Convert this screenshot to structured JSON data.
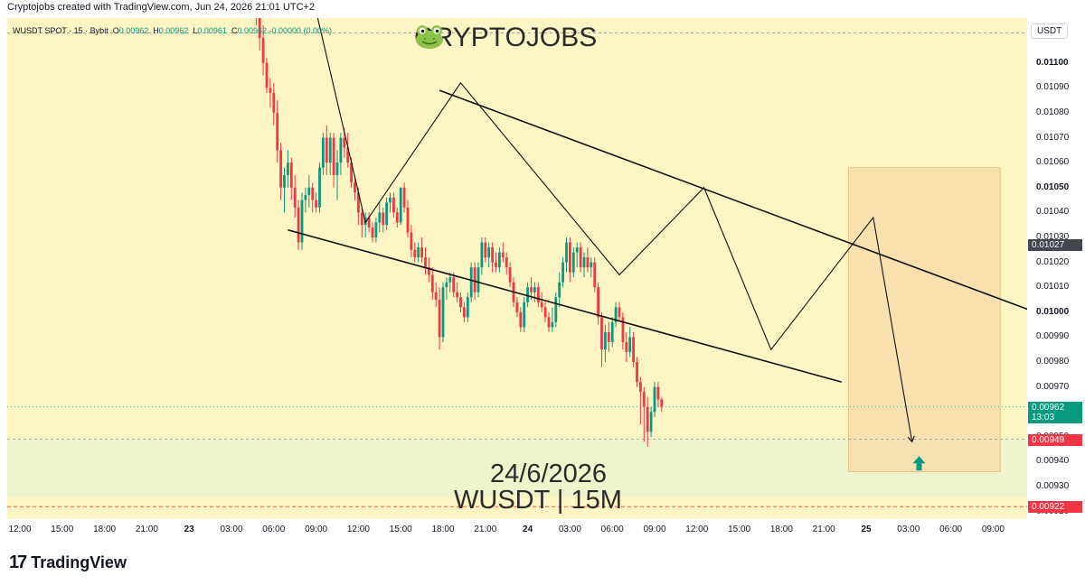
{
  "header": {
    "attribution": "Cryptojobs created with TradingView.com, Jun 24, 2026 21:01 UTC+2"
  },
  "legend": {
    "symbol": "WUSDT SPOT · 15 · Bybit",
    "o_label": "O",
    "o": "0.00962",
    "h_label": "H",
    "h": "0.00962",
    "l_label": "L",
    "l": "0.00961",
    "c_label": "C",
    "c": "0.00962",
    "change": "-0.00000 (0.00%)"
  },
  "overlay": {
    "brand": "CRYPTOJOBS",
    "brand_icon": "frog-icon",
    "date": "24/6/2026",
    "pair_timeframe": "WUSDT | 15M"
  },
  "yaxis": {
    "currency": "USDT",
    "labels": [
      "0.01100",
      "0.01090",
      "0.01080",
      "0.01070",
      "0.01060",
      "0.01050",
      "0.01040",
      "0.01030",
      "0.01020",
      "0.01010",
      "0.01000",
      "0.00990",
      "0.00980",
      "0.00970",
      "0.00960",
      "0.00950",
      "0.00940",
      "0.00930",
      "0.00920"
    ],
    "bold_labels": [
      "0.01100",
      "0.01050",
      "0.01000"
    ],
    "badges": [
      {
        "name": "level-badge",
        "text": "0.01027",
        "value": 0.01027,
        "color": "#434651"
      },
      {
        "name": "last-price-badge",
        "text": "0.00962",
        "sub": "13:03",
        "value": 0.00962,
        "color": "#089981"
      },
      {
        "name": "support-badge",
        "text": "0.00949",
        "value": 0.00949,
        "color": "#f23645"
      },
      {
        "name": "low-badge",
        "text": "0.00922",
        "value": 0.00922,
        "color": "#f23645"
      }
    ]
  },
  "xaxis": {
    "labels": [
      {
        "t": "12:00",
        "i": 0,
        "day": false
      },
      {
        "t": "15:00",
        "i": 12,
        "day": false
      },
      {
        "t": "18:00",
        "i": 24,
        "day": false
      },
      {
        "t": "21:00",
        "i": 36,
        "day": false
      },
      {
        "t": "23",
        "i": 48,
        "day": true
      },
      {
        "t": "03:00",
        "i": 60,
        "day": false
      },
      {
        "t": "06:00",
        "i": 72,
        "day": false
      },
      {
        "t": "09:00",
        "i": 84,
        "day": false
      },
      {
        "t": "12:00",
        "i": 96,
        "day": false
      },
      {
        "t": "15:00",
        "i": 108,
        "day": false
      },
      {
        "t": "18:00",
        "i": 120,
        "day": false
      },
      {
        "t": "21:00",
        "i": 132,
        "day": false
      },
      {
        "t": "24",
        "i": 144,
        "day": true
      },
      {
        "t": "03:00",
        "i": 156,
        "day": false
      },
      {
        "t": "06:00",
        "i": 168,
        "day": false
      },
      {
        "t": "09:00",
        "i": 180,
        "day": false
      },
      {
        "t": "12:00",
        "i": 192,
        "day": false
      },
      {
        "t": "15:00",
        "i": 204,
        "day": false
      },
      {
        "t": "18:00",
        "i": 216,
        "day": false
      },
      {
        "t": "21:00",
        "i": 228,
        "day": false
      },
      {
        "t": "25",
        "i": 240,
        "day": true
      },
      {
        "t": "03:00",
        "i": 252,
        "day": false
      },
      {
        "t": "06:00",
        "i": 264,
        "day": false
      },
      {
        "t": "09:00",
        "i": 276,
        "day": false
      }
    ]
  },
  "footer": {
    "logo_text": "TradingView",
    "logo_mark": "17"
  },
  "colors": {
    "up": "#089981",
    "down": "#f23645",
    "background": "#fdf5c3",
    "zone": "#f5d9a8",
    "support_zone": "#eef5cc"
  },
  "chart_data": {
    "type": "candlestick",
    "title": "",
    "xlabel": "",
    "ylabel": "",
    "ylim": [
      0.00917,
      0.01118
    ],
    "x_unit": "15-minute bars from Jun 22 12:00",
    "candles": [
      {
        "i": 66,
        "o": 0.0113,
        "h": 0.0114,
        "l": 0.01125,
        "c": 0.01128
      },
      {
        "i": 67,
        "o": 0.01128,
        "h": 0.01135,
        "l": 0.01115,
        "c": 0.0112
      },
      {
        "i": 68,
        "o": 0.0112,
        "h": 0.01122,
        "l": 0.01105,
        "c": 0.0111
      },
      {
        "i": 69,
        "o": 0.0111,
        "h": 0.01115,
        "l": 0.01095,
        "c": 0.011
      },
      {
        "i": 70,
        "o": 0.011,
        "h": 0.01102,
        "l": 0.01088,
        "c": 0.0109
      },
      {
        "i": 71,
        "o": 0.0109,
        "h": 0.01094,
        "l": 0.01082,
        "c": 0.01088
      },
      {
        "i": 72,
        "o": 0.01088,
        "h": 0.01092,
        "l": 0.01075,
        "c": 0.0108
      },
      {
        "i": 73,
        "o": 0.0108,
        "h": 0.01085,
        "l": 0.0106,
        "c": 0.01065
      },
      {
        "i": 74,
        "o": 0.01065,
        "h": 0.01068,
        "l": 0.01045,
        "c": 0.0105
      },
      {
        "i": 75,
        "o": 0.0105,
        "h": 0.01058,
        "l": 0.0104,
        "c": 0.01055
      },
      {
        "i": 76,
        "o": 0.01055,
        "h": 0.01065,
        "l": 0.0105,
        "c": 0.0106
      },
      {
        "i": 77,
        "o": 0.0106,
        "h": 0.01062,
        "l": 0.01045,
        "c": 0.0105
      },
      {
        "i": 78,
        "o": 0.0105,
        "h": 0.01055,
        "l": 0.01038,
        "c": 0.01042
      },
      {
        "i": 79,
        "o": 0.01042,
        "h": 0.01045,
        "l": 0.01025,
        "c": 0.01028
      },
      {
        "i": 80,
        "o": 0.01028,
        "h": 0.01048,
        "l": 0.01025,
        "c": 0.01045
      },
      {
        "i": 81,
        "o": 0.01045,
        "h": 0.0105,
        "l": 0.0104,
        "c": 0.01047
      },
      {
        "i": 82,
        "o": 0.01047,
        "h": 0.01055,
        "l": 0.01042,
        "c": 0.0105
      },
      {
        "i": 83,
        "o": 0.0105,
        "h": 0.01052,
        "l": 0.0104,
        "c": 0.01045
      },
      {
        "i": 84,
        "o": 0.01045,
        "h": 0.01048,
        "l": 0.0104,
        "c": 0.01042
      },
      {
        "i": 85,
        "o": 0.01042,
        "h": 0.0106,
        "l": 0.0104,
        "c": 0.01058
      },
      {
        "i": 86,
        "o": 0.01058,
        "h": 0.01072,
        "l": 0.01055,
        "c": 0.0107
      },
      {
        "i": 87,
        "o": 0.0107,
        "h": 0.01075,
        "l": 0.01055,
        "c": 0.0106
      },
      {
        "i": 88,
        "o": 0.0106,
        "h": 0.01072,
        "l": 0.01055,
        "c": 0.0107
      },
      {
        "i": 89,
        "o": 0.0107,
        "h": 0.01072,
        "l": 0.0105,
        "c": 0.01055
      },
      {
        "i": 90,
        "o": 0.01055,
        "h": 0.01065,
        "l": 0.01045,
        "c": 0.0106
      },
      {
        "i": 91,
        "o": 0.0106,
        "h": 0.01072,
        "l": 0.01055,
        "c": 0.0107
      },
      {
        "i": 92,
        "o": 0.0107,
        "h": 0.01074,
        "l": 0.01062,
        "c": 0.01066
      },
      {
        "i": 93,
        "o": 0.01066,
        "h": 0.01072,
        "l": 0.01058,
        "c": 0.0106
      },
      {
        "i": 94,
        "o": 0.0106,
        "h": 0.01062,
        "l": 0.0105,
        "c": 0.01052
      },
      {
        "i": 95,
        "o": 0.01052,
        "h": 0.01055,
        "l": 0.01045,
        "c": 0.01048
      },
      {
        "i": 96,
        "o": 0.01048,
        "h": 0.0105,
        "l": 0.01035,
        "c": 0.0104
      },
      {
        "i": 97,
        "o": 0.0104,
        "h": 0.01042,
        "l": 0.0103,
        "c": 0.01035
      },
      {
        "i": 98,
        "o": 0.01035,
        "h": 0.0104,
        "l": 0.0103,
        "c": 0.01038
      },
      {
        "i": 99,
        "o": 0.01038,
        "h": 0.0104,
        "l": 0.01032,
        "c": 0.01034
      },
      {
        "i": 100,
        "o": 0.01034,
        "h": 0.01036,
        "l": 0.01028,
        "c": 0.0103
      },
      {
        "i": 101,
        "o": 0.0103,
        "h": 0.01038,
        "l": 0.01028,
        "c": 0.01036
      },
      {
        "i": 102,
        "o": 0.01036,
        "h": 0.01044,
        "l": 0.01032,
        "c": 0.0104
      },
      {
        "i": 103,
        "o": 0.0104,
        "h": 0.01042,
        "l": 0.01032,
        "c": 0.01035
      },
      {
        "i": 104,
        "o": 0.01035,
        "h": 0.01046,
        "l": 0.01033,
        "c": 0.01044
      },
      {
        "i": 105,
        "o": 0.01044,
        "h": 0.01048,
        "l": 0.0104,
        "c": 0.01046
      },
      {
        "i": 106,
        "o": 0.01046,
        "h": 0.01048,
        "l": 0.01038,
        "c": 0.0104
      },
      {
        "i": 107,
        "o": 0.0104,
        "h": 0.01042,
        "l": 0.01034,
        "c": 0.01036
      },
      {
        "i": 108,
        "o": 0.01036,
        "h": 0.0105,
        "l": 0.01035,
        "c": 0.0105
      },
      {
        "i": 109,
        "o": 0.0105,
        "h": 0.01052,
        "l": 0.0104,
        "c": 0.01042
      },
      {
        "i": 110,
        "o": 0.01042,
        "h": 0.01045,
        "l": 0.0103,
        "c": 0.01032
      },
      {
        "i": 111,
        "o": 0.01032,
        "h": 0.01035,
        "l": 0.01022,
        "c": 0.01025
      },
      {
        "i": 112,
        "o": 0.01025,
        "h": 0.01028,
        "l": 0.0102,
        "c": 0.01022
      },
      {
        "i": 113,
        "o": 0.01022,
        "h": 0.01028,
        "l": 0.0102,
        "c": 0.01026
      },
      {
        "i": 114,
        "o": 0.01026,
        "h": 0.0103,
        "l": 0.0102,
        "c": 0.01022
      },
      {
        "i": 115,
        "o": 0.01022,
        "h": 0.01026,
        "l": 0.01015,
        "c": 0.01018
      },
      {
        "i": 116,
        "o": 0.01018,
        "h": 0.01022,
        "l": 0.01012,
        "c": 0.01015
      },
      {
        "i": 117,
        "o": 0.01015,
        "h": 0.01018,
        "l": 0.01005,
        "c": 0.01008
      },
      {
        "i": 118,
        "o": 0.01008,
        "h": 0.01012,
        "l": 0.01002,
        "c": 0.01005
      },
      {
        "i": 119,
        "o": 0.01005,
        "h": 0.0101,
        "l": 0.00985,
        "c": 0.0099
      },
      {
        "i": 120,
        "o": 0.0099,
        "h": 0.01012,
        "l": 0.00988,
        "c": 0.0101
      },
      {
        "i": 121,
        "o": 0.0101,
        "h": 0.01014,
        "l": 0.01005,
        "c": 0.01012
      },
      {
        "i": 122,
        "o": 0.01012,
        "h": 0.01016,
        "l": 0.01008,
        "c": 0.01014
      },
      {
        "i": 123,
        "o": 0.01014,
        "h": 0.01016,
        "l": 0.01006,
        "c": 0.01008
      },
      {
        "i": 124,
        "o": 0.01008,
        "h": 0.01012,
        "l": 0.01004,
        "c": 0.01006
      },
      {
        "i": 125,
        "o": 0.01006,
        "h": 0.01008,
        "l": 0.01,
        "c": 0.01002
      },
      {
        "i": 126,
        "o": 0.01002,
        "h": 0.01004,
        "l": 0.00996,
        "c": 0.00998
      },
      {
        "i": 127,
        "o": 0.00998,
        "h": 0.01008,
        "l": 0.00996,
        "c": 0.01006
      },
      {
        "i": 128,
        "o": 0.01006,
        "h": 0.0102,
        "l": 0.01004,
        "c": 0.01018
      },
      {
        "i": 129,
        "o": 0.01018,
        "h": 0.0102,
        "l": 0.01005,
        "c": 0.01008
      },
      {
        "i": 130,
        "o": 0.01008,
        "h": 0.0102,
        "l": 0.01006,
        "c": 0.01018
      },
      {
        "i": 131,
        "o": 0.01018,
        "h": 0.0103,
        "l": 0.01015,
        "c": 0.01028
      },
      {
        "i": 132,
        "o": 0.01028,
        "h": 0.0103,
        "l": 0.0102,
        "c": 0.01022
      },
      {
        "i": 133,
        "o": 0.01022,
        "h": 0.01028,
        "l": 0.01018,
        "c": 0.01026
      },
      {
        "i": 134,
        "o": 0.01026,
        "h": 0.01028,
        "l": 0.01016,
        "c": 0.0102
      },
      {
        "i": 135,
        "o": 0.0102,
        "h": 0.01024,
        "l": 0.01016,
        "c": 0.01018
      },
      {
        "i": 136,
        "o": 0.01018,
        "h": 0.01026,
        "l": 0.01016,
        "c": 0.01024
      },
      {
        "i": 137,
        "o": 0.01024,
        "h": 0.01028,
        "l": 0.0102,
        "c": 0.01022
      },
      {
        "i": 138,
        "o": 0.01022,
        "h": 0.01024,
        "l": 0.01015,
        "c": 0.01018
      },
      {
        "i": 139,
        "o": 0.01018,
        "h": 0.0102,
        "l": 0.0101,
        "c": 0.01012
      },
      {
        "i": 140,
        "o": 0.01012,
        "h": 0.01014,
        "l": 0.01002,
        "c": 0.01004
      },
      {
        "i": 141,
        "o": 0.01004,
        "h": 0.01006,
        "l": 0.00998,
        "c": 0.01
      },
      {
        "i": 142,
        "o": 0.01,
        "h": 0.01002,
        "l": 0.00992,
        "c": 0.00994
      },
      {
        "i": 143,
        "o": 0.00994,
        "h": 0.01006,
        "l": 0.00992,
        "c": 0.01004
      },
      {
        "i": 144,
        "o": 0.01004,
        "h": 0.01012,
        "l": 0.01002,
        "c": 0.0101
      },
      {
        "i": 145,
        "o": 0.0101,
        "h": 0.01014,
        "l": 0.01005,
        "c": 0.01008
      },
      {
        "i": 146,
        "o": 0.01008,
        "h": 0.01012,
        "l": 0.01004,
        "c": 0.0101
      },
      {
        "i": 147,
        "o": 0.0101,
        "h": 0.01012,
        "l": 0.01002,
        "c": 0.01004
      },
      {
        "i": 148,
        "o": 0.01004,
        "h": 0.01008,
        "l": 0.01,
        "c": 0.01002
      },
      {
        "i": 149,
        "o": 0.01002,
        "h": 0.01004,
        "l": 0.00996,
        "c": 0.00998
      },
      {
        "i": 150,
        "o": 0.00998,
        "h": 0.01,
        "l": 0.00992,
        "c": 0.00994
      },
      {
        "i": 151,
        "o": 0.00994,
        "h": 0.01002,
        "l": 0.00992,
        "c": 0.00996
      },
      {
        "i": 152,
        "o": 0.00996,
        "h": 0.01008,
        "l": 0.00994,
        "c": 0.01006
      },
      {
        "i": 153,
        "o": 0.01006,
        "h": 0.01016,
        "l": 0.01002,
        "c": 0.01012
      },
      {
        "i": 154,
        "o": 0.01012,
        "h": 0.01022,
        "l": 0.0101,
        "c": 0.0102
      },
      {
        "i": 155,
        "o": 0.0102,
        "h": 0.0103,
        "l": 0.01016,
        "c": 0.01028
      },
      {
        "i": 156,
        "o": 0.01028,
        "h": 0.0103,
        "l": 0.01012,
        "c": 0.01016
      },
      {
        "i": 157,
        "o": 0.01016,
        "h": 0.01026,
        "l": 0.01014,
        "c": 0.01024
      },
      {
        "i": 158,
        "o": 0.01024,
        "h": 0.01028,
        "l": 0.01018,
        "c": 0.01026
      },
      {
        "i": 159,
        "o": 0.01026,
        "h": 0.01028,
        "l": 0.01016,
        "c": 0.01018
      },
      {
        "i": 160,
        "o": 0.01018,
        "h": 0.01024,
        "l": 0.01014,
        "c": 0.01022
      },
      {
        "i": 161,
        "o": 0.01022,
        "h": 0.01026,
        "l": 0.01016,
        "c": 0.01018
      },
      {
        "i": 162,
        "o": 0.01018,
        "h": 0.01022,
        "l": 0.01014,
        "c": 0.0102
      },
      {
        "i": 163,
        "o": 0.0102,
        "h": 0.01022,
        "l": 0.01008,
        "c": 0.0101
      },
      {
        "i": 164,
        "o": 0.0101,
        "h": 0.01012,
        "l": 0.00995,
        "c": 0.00998
      },
      {
        "i": 165,
        "o": 0.00998,
        "h": 0.01,
        "l": 0.00978,
        "c": 0.00985
      },
      {
        "i": 166,
        "o": 0.00985,
        "h": 0.00995,
        "l": 0.0098,
        "c": 0.00992
      },
      {
        "i": 167,
        "o": 0.00992,
        "h": 0.00996,
        "l": 0.00984,
        "c": 0.00988
      },
      {
        "i": 168,
        "o": 0.00988,
        "h": 0.00998,
        "l": 0.00986,
        "c": 0.00996
      },
      {
        "i": 169,
        "o": 0.00996,
        "h": 0.01004,
        "l": 0.00994,
        "c": 0.01002
      },
      {
        "i": 170,
        "o": 0.01002,
        "h": 0.01004,
        "l": 0.00996,
        "c": 0.00998
      },
      {
        "i": 171,
        "o": 0.00998,
        "h": 0.01,
        "l": 0.00985,
        "c": 0.00988
      },
      {
        "i": 172,
        "o": 0.00988,
        "h": 0.00992,
        "l": 0.0098,
        "c": 0.00984
      },
      {
        "i": 173,
        "o": 0.00984,
        "h": 0.00994,
        "l": 0.00982,
        "c": 0.0099
      },
      {
        "i": 174,
        "o": 0.0099,
        "h": 0.00992,
        "l": 0.00978,
        "c": 0.0098
      },
      {
        "i": 175,
        "o": 0.0098,
        "h": 0.00982,
        "l": 0.0097,
        "c": 0.00972
      },
      {
        "i": 176,
        "o": 0.00972,
        "h": 0.00974,
        "l": 0.00955,
        "c": 0.00968
      },
      {
        "i": 177,
        "o": 0.00968,
        "h": 0.0097,
        "l": 0.00948,
        "c": 0.00962
      },
      {
        "i": 178,
        "o": 0.00962,
        "h": 0.00966,
        "l": 0.00946,
        "c": 0.00952
      },
      {
        "i": 179,
        "o": 0.00952,
        "h": 0.00962,
        "l": 0.0095,
        "c": 0.0096
      },
      {
        "i": 180,
        "o": 0.0096,
        "h": 0.00972,
        "l": 0.00958,
        "c": 0.0097
      },
      {
        "i": 181,
        "o": 0.0097,
        "h": 0.00972,
        "l": 0.00962,
        "c": 0.00965
      },
      {
        "i": 182,
        "o": 0.00965,
        "h": 0.00966,
        "l": 0.0096,
        "c": 0.00962
      }
    ],
    "drawings": {
      "channel_upper": [
        {
          "i": 119,
          "v": 0.01089
        },
        {
          "i": 288,
          "v": 0.01
        }
      ],
      "channel_lower": [
        {
          "i": 76,
          "v": 0.01033
        },
        {
          "i": 233,
          "v": 0.00972
        }
      ],
      "zigzag": [
        {
          "i": 79,
          "v": 0.01151
        },
        {
          "i": 98,
          "v": 0.01036
        },
        {
          "i": 125,
          "v": 0.01092
        },
        {
          "i": 170,
          "v": 0.01015
        },
        {
          "i": 194,
          "v": 0.0105
        },
        {
          "i": 213,
          "v": 0.00985
        },
        {
          "i": 242,
          "v": 0.01038
        },
        {
          "i": 253,
          "v": 0.00948
        }
      ],
      "target_zone": {
        "i_start": 235,
        "i_end": 278,
        "v_top": 0.01058,
        "v_bottom": 0.00936
      },
      "support_line": 0.00949,
      "low_line": 0.00922
    }
  }
}
